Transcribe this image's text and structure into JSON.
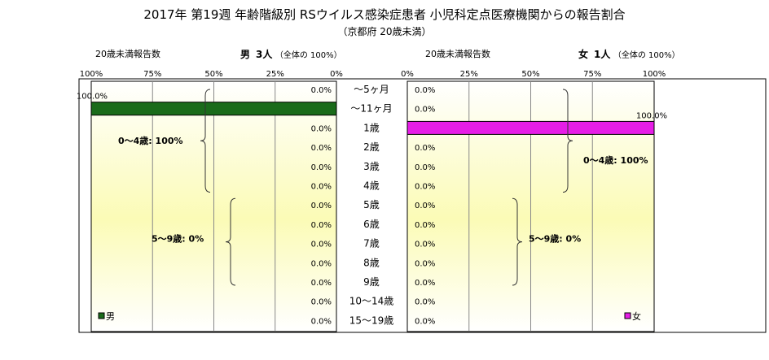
{
  "title": "2017年 第19週 年齢階級別 RSウイルス感染症患者 小児科定点医療機関からの報告割合",
  "subtitle": "（京都府 20歳未満）",
  "left_header": {
    "count_label": "20歳未満報告数",
    "sex": "男",
    "persons": "3人",
    "total": "（全体の 100%）"
  },
  "right_header": {
    "count_label": "20歳未満報告数",
    "sex": "女",
    "persons": "1人",
    "total": "（全体の 100%）"
  },
  "legend": {
    "male": "男",
    "female": "女"
  },
  "brackets": {
    "male_0_4": "0～4歳: 100%",
    "male_5_9": "5～9歳: 0%",
    "female_0_4": "0～4歳: 100%",
    "female_5_9": "5～9歳: 0%"
  },
  "colors": {
    "male": "#1a6b1a",
    "female": "#e61ee6"
  },
  "chart_data": [
    {
      "type": "bar",
      "orientation": "horizontal",
      "direction": "right-to-left",
      "series": [
        {
          "name": "男",
          "values": [
            0,
            100,
            0,
            0,
            0,
            0,
            0,
            0,
            0,
            0,
            0,
            0,
            0
          ]
        }
      ],
      "value_labels": [
        "0.0%",
        "100.0%",
        "0.0%",
        "0.0%",
        "0.0%",
        "0.0%",
        "0.0%",
        "0.0%",
        "0.0%",
        "0.0%",
        "0.0%",
        "0.0%",
        "0.0%"
      ],
      "categories": [
        "～5ヶ月",
        "～11ヶ月",
        "1歳",
        "2歳",
        "3歳",
        "4歳",
        "5歳",
        "6歳",
        "7歳",
        "8歳",
        "9歳",
        "10～14歳",
        "15～19歳"
      ],
      "ticks": [
        "100%",
        "75%",
        "50%",
        "25%",
        "0%"
      ],
      "xlim": [
        100,
        0
      ],
      "grid": true
    },
    {
      "type": "bar",
      "orientation": "horizontal",
      "direction": "left-to-right",
      "series": [
        {
          "name": "女",
          "values": [
            0,
            0,
            100,
            0,
            0,
            0,
            0,
            0,
            0,
            0,
            0,
            0,
            0
          ]
        }
      ],
      "value_labels": [
        "0.0%",
        "0.0%",
        "100.0%",
        "0.0%",
        "0.0%",
        "0.0%",
        "0.0%",
        "0.0%",
        "0.0%",
        "0.0%",
        "0.0%",
        "0.0%",
        "0.0%"
      ],
      "categories": [
        "～5ヶ月",
        "～11ヶ月",
        "1歳",
        "2歳",
        "3歳",
        "4歳",
        "5歳",
        "6歳",
        "7歳",
        "8歳",
        "9歳",
        "10～14歳",
        "15～19歳"
      ],
      "ticks": [
        "0%",
        "25%",
        "50%",
        "75%",
        "100%"
      ],
      "xlim": [
        0,
        100
      ],
      "grid": true
    }
  ]
}
